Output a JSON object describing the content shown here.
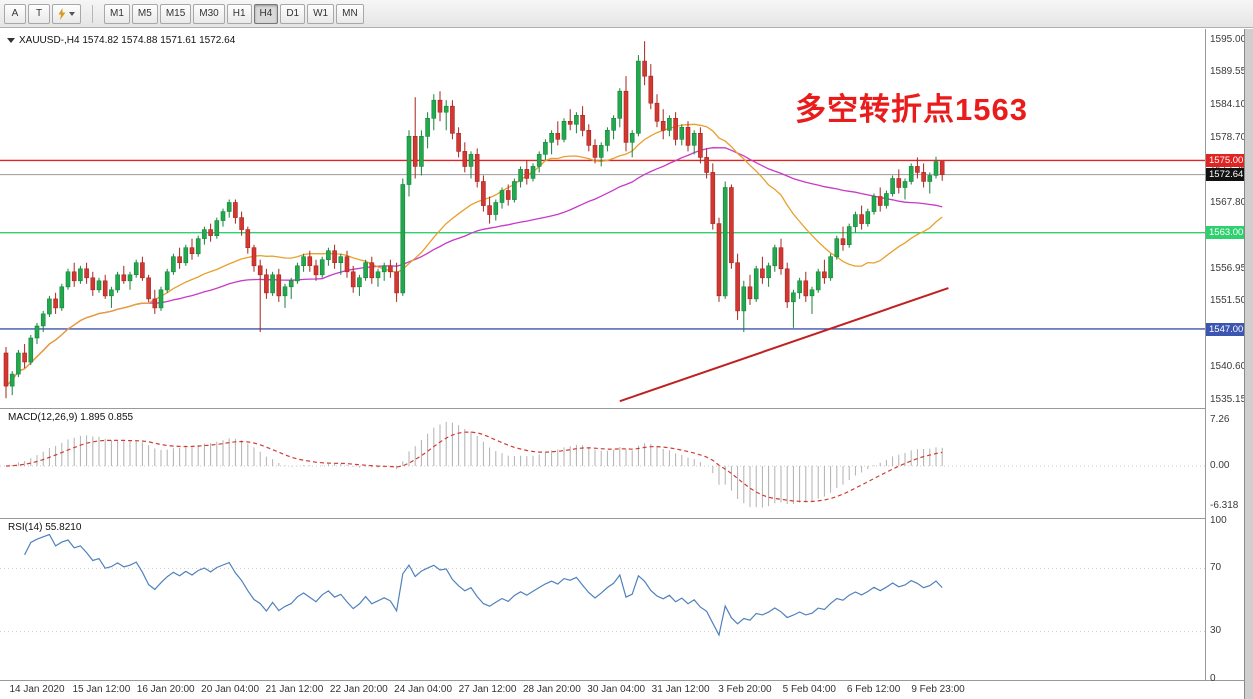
{
  "toolbar": {
    "tool_buttons": [
      {
        "label": "A"
      },
      {
        "label": "T"
      }
    ],
    "timeframes": [
      "M1",
      "M5",
      "M15",
      "M30",
      "H1",
      "H4",
      "D1",
      "W1",
      "MN"
    ],
    "active_timeframe": "H4"
  },
  "chart": {
    "header_text": "XAUUSD-,H4 1574.82 1574.88 1571.61 1572.64",
    "annotation": {
      "text": "多空转折点1563"
    },
    "current_price_label": "1572.64"
  },
  "indicators": {
    "macd": {
      "label": "MACD(12,26,9) 1.895 0.855"
    },
    "rsi": {
      "label": "RSI(14) 55.8210"
    }
  },
  "colors": {
    "candle_up": "#22a94e",
    "candle_up_border": "#17823a",
    "candle_down": "#d23732",
    "candle_down_border": "#a8241f",
    "ma_fast": "#e8a02c",
    "ma_slow": "#c73ac7",
    "trendline": "#c02020",
    "current_price_line": "#9a9a9a",
    "macd_histogram": "#b0b0b0",
    "macd_signal": "#d23b35",
    "rsi_line": "#4f81bd",
    "annotation": "#ea1b1b"
  },
  "chart_data": {
    "type": "candlestick",
    "symbol": "XAUUSD-",
    "timeframe": "H4",
    "current_price": 1572.64,
    "levels": [
      {
        "label": "1575.00",
        "value": 1575.0,
        "color": "#e02422"
      },
      {
        "label": "1563.00",
        "value": 1563.0,
        "color": "#2fd06e"
      },
      {
        "label": "1547.00",
        "value": 1547.0,
        "color": "#3c55b0"
      }
    ],
    "price_ticks": [
      1595.0,
      1589.55,
      1584.1,
      1578.7,
      1573.25,
      1567.8,
      1562.4,
      1556.95,
      1551.5,
      1546.05,
      1540.6,
      1535.15
    ],
    "ma_periods": {
      "fast": 24,
      "slow": 52
    },
    "trendline": {
      "from_bar": 99,
      "from_price": 1535.0,
      "to_bar": 152,
      "to_price": 1553.8
    },
    "macd": {
      "fast": 12,
      "slow": 26,
      "signal": 9,
      "axis": [
        {
          "label": "7.26",
          "value": 7.26
        },
        {
          "label": "0.00",
          "value": 0
        },
        {
          "label": "-6.318",
          "value": -6.318
        }
      ]
    },
    "rsi": {
      "period": 14,
      "levels": [
        70,
        30
      ],
      "axis": [
        {
          "label": "100",
          "value": 100
        },
        {
          "label": "70",
          "value": 70
        },
        {
          "label": "30",
          "value": 30
        },
        {
          "label": "0",
          "value": 0
        }
      ]
    },
    "time_labels": [
      "14 Jan 2020",
      "15 Jan 12:00",
      "16 Jan 20:00",
      "20 Jan 04:00",
      "21 Jan 12:00",
      "22 Jan 20:00",
      "24 Jan 04:00",
      "27 Jan 12:00",
      "28 Jan 20:00",
      "30 Jan 04:00",
      "31 Jan 12:00",
      "3 Feb 20:00",
      "5 Feb 04:00",
      "6 Feb 12:00",
      "9 Feb 23:00"
    ],
    "ohlc": [
      [
        1543,
        1544,
        1535.5,
        1537.5
      ],
      [
        1537.5,
        1540,
        1536,
        1539.5
      ],
      [
        1539.5,
        1543.5,
        1539,
        1543
      ],
      [
        1543,
        1544.5,
        1540.5,
        1541.5
      ],
      [
        1541.5,
        1546,
        1541,
        1545.5
      ],
      [
        1545.5,
        1548,
        1544.5,
        1547.5
      ],
      [
        1547.5,
        1550,
        1546.5,
        1549.5
      ],
      [
        1549.5,
        1552.5,
        1549,
        1552
      ],
      [
        1552,
        1553,
        1549.5,
        1550.5
      ],
      [
        1550.5,
        1554.5,
        1550,
        1554
      ],
      [
        1554,
        1557,
        1553.5,
        1556.5
      ],
      [
        1556.5,
        1558,
        1554,
        1555
      ],
      [
        1555,
        1557.5,
        1554.5,
        1557
      ],
      [
        1557,
        1558,
        1554.5,
        1555.5
      ],
      [
        1555.5,
        1556.5,
        1552.5,
        1553.5
      ],
      [
        1553.5,
        1555.5,
        1553,
        1555
      ],
      [
        1555,
        1556,
        1552,
        1552.5
      ],
      [
        1552.5,
        1554,
        1550.5,
        1553.5
      ],
      [
        1553.5,
        1556.5,
        1553,
        1556
      ],
      [
        1556,
        1557.5,
        1554.5,
        1555
      ],
      [
        1555,
        1556.5,
        1553.5,
        1556
      ],
      [
        1556,
        1558.5,
        1555.5,
        1558
      ],
      [
        1558,
        1559,
        1555,
        1555.5
      ],
      [
        1555.5,
        1556,
        1551.5,
        1552
      ],
      [
        1552,
        1553.5,
        1549.5,
        1550.5
      ],
      [
        1550.5,
        1554,
        1550,
        1553.5
      ],
      [
        1553.5,
        1557,
        1553,
        1556.5
      ],
      [
        1556.5,
        1559.5,
        1556,
        1559
      ],
      [
        1559,
        1560.5,
        1557,
        1558
      ],
      [
        1558,
        1561,
        1557.5,
        1560.5
      ],
      [
        1560.5,
        1562,
        1558.5,
        1559.5
      ],
      [
        1559.5,
        1562.5,
        1559,
        1562
      ],
      [
        1562,
        1564,
        1561,
        1563.5
      ],
      [
        1563.5,
        1564.5,
        1561.5,
        1562.5
      ],
      [
        1562.5,
        1565.5,
        1562,
        1565
      ],
      [
        1565,
        1567,
        1564,
        1566.5
      ],
      [
        1566.5,
        1568.5,
        1565.5,
        1568
      ],
      [
        1568,
        1568.5,
        1564.5,
        1565.5
      ],
      [
        1565.5,
        1566.5,
        1562.5,
        1563.5
      ],
      [
        1563.5,
        1564,
        1559.5,
        1560.5
      ],
      [
        1560.5,
        1561,
        1556.5,
        1557.5
      ],
      [
        1557.5,
        1558.5,
        1546.5,
        1556
      ],
      [
        1556,
        1557,
        1552,
        1553
      ],
      [
        1553,
        1556.5,
        1552.5,
        1556
      ],
      [
        1556,
        1557,
        1551.5,
        1552.5
      ],
      [
        1552.5,
        1554.5,
        1550.5,
        1554
      ],
      [
        1554,
        1555.5,
        1552,
        1555
      ],
      [
        1555,
        1558,
        1554.5,
        1557.5
      ],
      [
        1557.5,
        1559.5,
        1556.5,
        1559
      ],
      [
        1559,
        1560,
        1556.5,
        1557.5
      ],
      [
        1557.5,
        1558.5,
        1555,
        1556
      ],
      [
        1556,
        1559,
        1555.5,
        1558.5
      ],
      [
        1558.5,
        1560.5,
        1557.5,
        1560
      ],
      [
        1560,
        1561,
        1557,
        1558
      ],
      [
        1558,
        1559.5,
        1556,
        1559
      ],
      [
        1559,
        1560,
        1555.5,
        1556.5
      ],
      [
        1556.5,
        1557.5,
        1553,
        1554
      ],
      [
        1554,
        1556,
        1552.5,
        1555.5
      ],
      [
        1555.5,
        1558.5,
        1555,
        1558
      ],
      [
        1558,
        1559,
        1554.5,
        1555.5
      ],
      [
        1555.5,
        1557,
        1554,
        1556.5
      ],
      [
        1556.5,
        1558,
        1555,
        1557.5
      ],
      [
        1557.5,
        1558.5,
        1555.5,
        1556.5
      ],
      [
        1556.5,
        1558,
        1551.5,
        1553
      ],
      [
        1553,
        1572,
        1552.5,
        1571
      ],
      [
        1571,
        1580,
        1569,
        1579
      ],
      [
        1579,
        1585.5,
        1572,
        1574
      ],
      [
        1574,
        1580,
        1572.5,
        1579
      ],
      [
        1579,
        1583,
        1577,
        1582
      ],
      [
        1582,
        1586,
        1580,
        1585
      ],
      [
        1585,
        1586.5,
        1581.5,
        1583
      ],
      [
        1583,
        1585,
        1580,
        1584
      ],
      [
        1584,
        1585,
        1578.5,
        1579.5
      ],
      [
        1579.5,
        1580.5,
        1575.5,
        1576.5
      ],
      [
        1576.5,
        1578,
        1573,
        1574
      ],
      [
        1574,
        1576.5,
        1572,
        1576
      ],
      [
        1576,
        1577,
        1570.5,
        1571.5
      ],
      [
        1571.5,
        1572.5,
        1566.5,
        1567.5
      ],
      [
        1567.5,
        1569,
        1564.5,
        1566
      ],
      [
        1566,
        1568.5,
        1565,
        1568
      ],
      [
        1568,
        1570.5,
        1567,
        1570
      ],
      [
        1570,
        1571,
        1567.5,
        1568.5
      ],
      [
        1568.5,
        1572,
        1568,
        1571.5
      ],
      [
        1571.5,
        1574,
        1570.5,
        1573.5
      ],
      [
        1573.5,
        1575,
        1571,
        1572
      ],
      [
        1572,
        1574.5,
        1571.5,
        1574
      ],
      [
        1574,
        1576.5,
        1573,
        1576
      ],
      [
        1576,
        1578.5,
        1575,
        1578
      ],
      [
        1578,
        1580,
        1576,
        1579.5
      ],
      [
        1579.5,
        1581.5,
        1577.5,
        1578.5
      ],
      [
        1578.5,
        1582,
        1578,
        1581.5
      ],
      [
        1581.5,
        1583.5,
        1580,
        1581
      ],
      [
        1581,
        1583,
        1579.5,
        1582.5
      ],
      [
        1582.5,
        1584,
        1579,
        1580
      ],
      [
        1580,
        1581,
        1576.5,
        1577.5
      ],
      [
        1577.5,
        1578.5,
        1574.5,
        1575.5
      ],
      [
        1575.5,
        1578,
        1574,
        1577.5
      ],
      [
        1577.5,
        1580.5,
        1576.5,
        1580
      ],
      [
        1580,
        1582.5,
        1578.5,
        1582
      ],
      [
        1582,
        1587,
        1580.5,
        1586.5
      ],
      [
        1586.5,
        1589,
        1576.5,
        1578
      ],
      [
        1578,
        1580,
        1575.5,
        1579.5
      ],
      [
        1579.5,
        1592.5,
        1579,
        1591.5
      ],
      [
        1591.5,
        1594.8,
        1587.5,
        1589
      ],
      [
        1589,
        1591,
        1583.5,
        1584.5
      ],
      [
        1584.5,
        1586,
        1580.5,
        1581.5
      ],
      [
        1581.5,
        1583.5,
        1578.5,
        1580
      ],
      [
        1580,
        1582.5,
        1579,
        1582
      ],
      [
        1582,
        1583,
        1577.5,
        1578.5
      ],
      [
        1578.5,
        1581,
        1577.5,
        1580.5
      ],
      [
        1580.5,
        1581.5,
        1576.5,
        1577.5
      ],
      [
        1577.5,
        1580,
        1576,
        1579.5
      ],
      [
        1579.5,
        1580.5,
        1574.5,
        1575.5
      ],
      [
        1575.5,
        1577,
        1572,
        1573
      ],
      [
        1573,
        1574.5,
        1563.5,
        1564.5
      ],
      [
        1564.5,
        1565.5,
        1551.5,
        1552.5
      ],
      [
        1552.5,
        1571.5,
        1552,
        1570.5
      ],
      [
        1570.5,
        1571,
        1557,
        1558
      ],
      [
        1558,
        1559.5,
        1548.5,
        1550
      ],
      [
        1550,
        1555,
        1546.5,
        1554
      ],
      [
        1554,
        1556,
        1551,
        1552
      ],
      [
        1552,
        1557.5,
        1551.5,
        1557
      ],
      [
        1557,
        1559,
        1554.5,
        1555.5
      ],
      [
        1555.5,
        1558,
        1554,
        1557.5
      ],
      [
        1557.5,
        1561,
        1556.5,
        1560.5
      ],
      [
        1560.5,
        1562,
        1556,
        1557
      ],
      [
        1557,
        1558,
        1550.5,
        1551.5
      ],
      [
        1551.5,
        1553.5,
        1547.2,
        1553
      ],
      [
        1553,
        1555.5,
        1552,
        1555
      ],
      [
        1555,
        1556.5,
        1551.5,
        1552.5
      ],
      [
        1552.5,
        1554,
        1549.5,
        1553.5
      ],
      [
        1553.5,
        1557,
        1553,
        1556.5
      ],
      [
        1556.5,
        1558.5,
        1554.5,
        1555.5
      ],
      [
        1555.5,
        1559.5,
        1555,
        1559
      ],
      [
        1559,
        1562.5,
        1558.5,
        1562
      ],
      [
        1562,
        1564,
        1560,
        1561
      ],
      [
        1561,
        1564.5,
        1560.5,
        1564
      ],
      [
        1564,
        1566.5,
        1563,
        1566
      ],
      [
        1566,
        1567.5,
        1563.5,
        1564.5
      ],
      [
        1564.5,
        1567,
        1564,
        1566.5
      ],
      [
        1566.5,
        1569.5,
        1566,
        1569
      ],
      [
        1569,
        1570.5,
        1566.5,
        1567.5
      ],
      [
        1567.5,
        1570,
        1567,
        1569.5
      ],
      [
        1569.5,
        1572.5,
        1569,
        1572
      ],
      [
        1572,
        1573.5,
        1569.5,
        1570.5
      ],
      [
        1570.5,
        1572,
        1568.5,
        1571.5
      ],
      [
        1571.5,
        1574.5,
        1571,
        1574
      ],
      [
        1574,
        1575.5,
        1572,
        1573
      ],
      [
        1573,
        1574.5,
        1570.5,
        1571.5
      ],
      [
        1571.5,
        1573,
        1569.5,
        1572.5
      ],
      [
        1572.5,
        1575.6,
        1572,
        1574.8
      ],
      [
        1574.82,
        1574.88,
        1571.61,
        1572.64
      ]
    ]
  }
}
